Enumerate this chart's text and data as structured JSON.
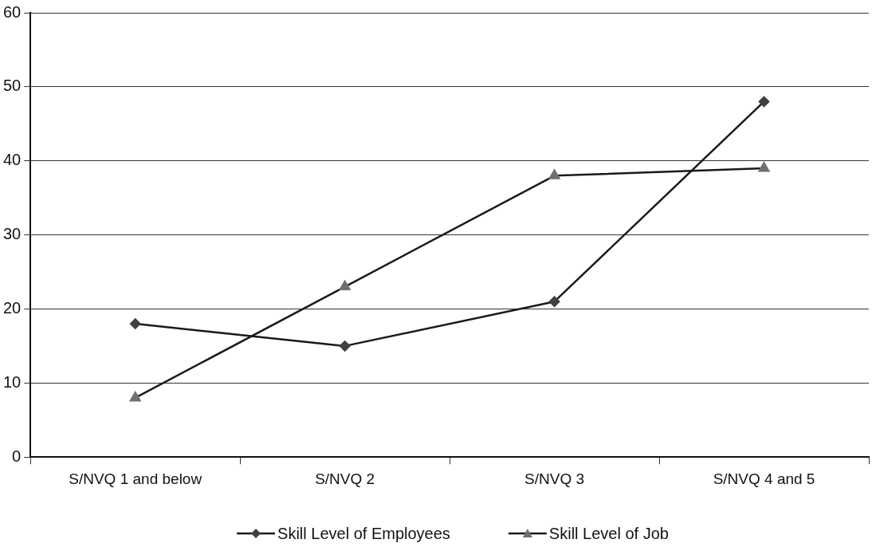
{
  "chart_data": {
    "type": "line",
    "categories": [
      "S/NVQ 1 and below",
      "S/NVQ 2",
      "S/NVQ 3",
      "S/NVQ 4 and 5"
    ],
    "series": [
      {
        "name": "Skill Level of Employees",
        "color": "#404040",
        "marker": "diamond",
        "values": [
          18,
          15,
          21,
          48
        ]
      },
      {
        "name": "Skill Level of Job",
        "color": "#707070",
        "marker": "triangle",
        "values": [
          8,
          23,
          38,
          39
        ]
      }
    ],
    "ylim": [
      0,
      60
    ],
    "yticks": [
      0,
      10,
      20,
      30,
      40,
      50,
      60
    ],
    "grid": "y",
    "legend": "bottom",
    "line_style": "solid"
  }
}
